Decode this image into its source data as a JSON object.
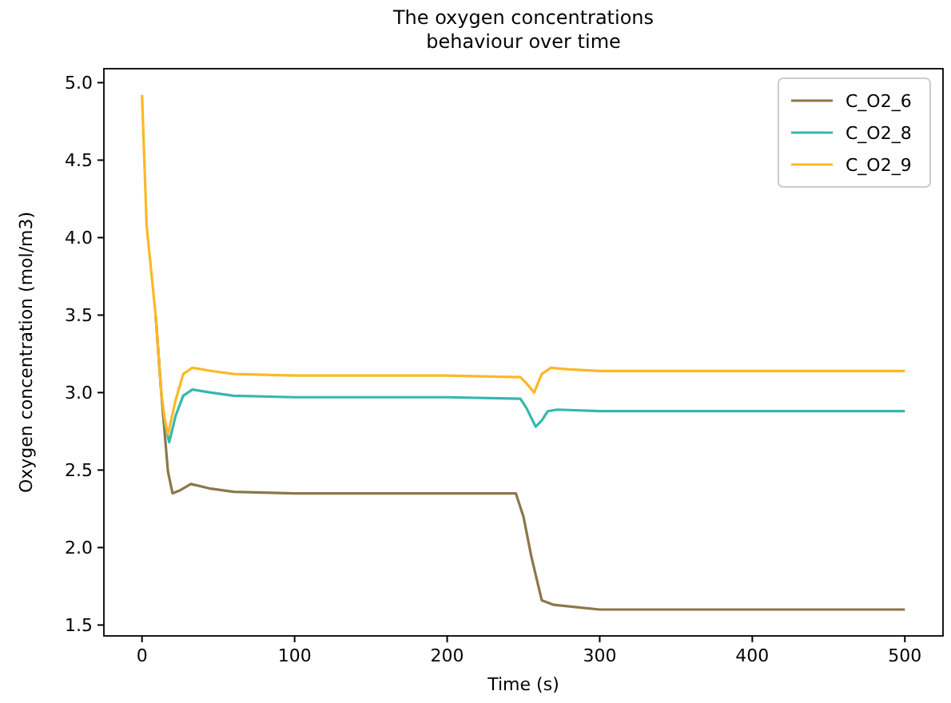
{
  "chart_data": {
    "type": "line",
    "title": "The oxygen concentrations\nbehaviour over time",
    "xlabel": "Time (s)",
    "ylabel": "Oxygen concentration (mol/m3)",
    "xlim": [
      -25,
      525
    ],
    "ylim": [
      1.43,
      5.09
    ],
    "xticks": [
      0,
      100,
      200,
      300,
      400,
      500
    ],
    "yticks": [
      {
        "value": 1.5,
        "label": "1.5"
      },
      {
        "value": 2,
        "label": "2.0"
      },
      {
        "value": 2.5,
        "label": "2.5"
      },
      {
        "value": 3,
        "label": "3.0"
      },
      {
        "value": 3.5,
        "label": "3.5"
      },
      {
        "value": 4,
        "label": "4.0"
      },
      {
        "value": 4.5,
        "label": "4.5"
      },
      {
        "value": 5,
        "label": "5.0"
      }
    ],
    "grid": false,
    "legend": "top right",
    "line_style": "solid",
    "marker": "none",
    "series": [
      {
        "name": "C_O2_6",
        "color": "#8b7748",
        "x": [
          9,
          12.6,
          17,
          20,
          25,
          32,
          45,
          60,
          100,
          200,
          245,
          250,
          255,
          258.6,
          262,
          270,
          300,
          400,
          500
        ],
        "values": [
          3.49,
          3.0,
          2.49,
          2.35,
          2.37,
          2.41,
          2.38,
          2.36,
          2.35,
          2.35,
          2.35,
          2.2,
          1.95,
          1.8,
          1.66,
          1.63,
          1.6,
          1.6,
          1.6
        ]
      },
      {
        "name": "C_O2_8",
        "color": "#35b8ae",
        "x": [
          15,
          17.8,
          22,
          27,
          33,
          45,
          60,
          100,
          200,
          248,
          252,
          258,
          262,
          266,
          272,
          300,
          400,
          500
        ],
        "values": [
          2.8,
          2.68,
          2.85,
          2.98,
          3.02,
          3.0,
          2.98,
          2.97,
          2.97,
          2.96,
          2.9,
          2.78,
          2.82,
          2.88,
          2.89,
          2.88,
          2.88,
          2.88
        ]
      },
      {
        "name": "C_O2_9",
        "color": "#fdb827",
        "x": [
          0,
          3,
          9,
          12.6,
          15,
          17,
          22,
          27,
          33,
          45,
          60,
          100,
          200,
          248,
          252,
          257,
          262,
          268,
          280,
          300,
          400,
          500
        ],
        "values": [
          4.92,
          4.08,
          3.49,
          3.0,
          2.82,
          2.73,
          2.95,
          3.12,
          3.16,
          3.14,
          3.12,
          3.11,
          3.11,
          3.1,
          3.06,
          3.0,
          3.12,
          3.16,
          3.15,
          3.14,
          3.14,
          3.14
        ]
      }
    ]
  }
}
